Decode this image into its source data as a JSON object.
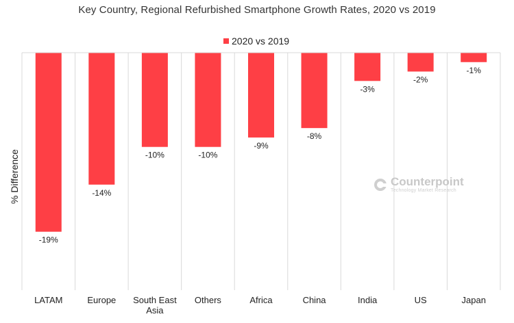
{
  "chart_data": {
    "type": "bar",
    "title": "Key Country, Regional Refurbished Smartphone Growth Rates, 2020 vs 2019",
    "xlabel": "",
    "ylabel": "% Difference",
    "categories": [
      "LATAM",
      "Europe",
      "South East Asia",
      "Others",
      "Africa",
      "China",
      "India",
      "US",
      "Japan"
    ],
    "series": [
      {
        "name": "2020 vs 2019",
        "values": [
          -19,
          -14,
          -10,
          -10,
          -9,
          -8,
          -3,
          -2,
          -1
        ],
        "labels": [
          "-19%",
          "-14%",
          "-10%",
          "-10%",
          "-9%",
          "-8%",
          "-3%",
          "-2%",
          "-1%"
        ]
      }
    ],
    "ylim": [
      -25.2,
      0
    ],
    "grid": "vertical category separators",
    "legend_position": "top-center"
  },
  "colors": {
    "bar": "#fe3f45",
    "grid": "#d9d9d9"
  },
  "watermark": {
    "brand": "Counterpoint",
    "tagline": "Technology Market Research"
  }
}
